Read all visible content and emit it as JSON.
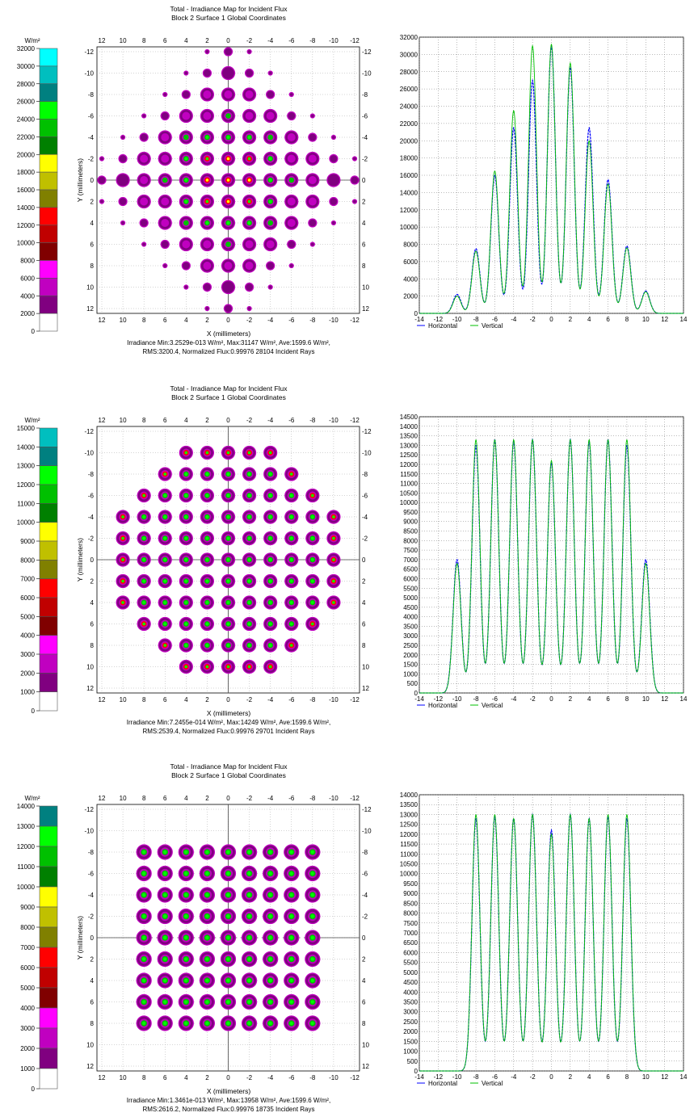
{
  "panels": [
    {
      "title": "Total - Irradiance Map for Incident Flux",
      "subtitle": "Block 2 Surface 1    Global Coordinates",
      "unit": "W/m²",
      "legend_ticks": [
        "32000",
        "30000",
        "28000",
        "26000",
        "24000",
        "22000",
        "20000",
        "18000",
        "16000",
        "14000",
        "12000",
        "10000",
        "8000",
        "6000",
        "4000",
        "2000",
        "0"
      ],
      "map_xlabel": "X (millimeters)",
      "map_ylabel": "Y (millimeters)",
      "stats1": "Irradiance Min:3.2529e-013 W/m², Max:31147 W/m², Ave:1599.6 W/m²,",
      "stats2": "RMS:3200.4, Normalized Flux:0.99976  28104 Incident Rays",
      "legend_h": "Horizontal",
      "legend_v": "Vertical"
    },
    {
      "title": "Total - Irradiance Map for Incident Flux",
      "subtitle": "Block 2 Surface 1    Global Coordinates",
      "unit": "W/m²",
      "legend_ticks": [
        "15000",
        "14000",
        "13000",
        "12000",
        "11000",
        "10000",
        "9000",
        "8000",
        "7000",
        "6000",
        "5000",
        "4000",
        "3000",
        "2000",
        "1000",
        "0"
      ],
      "map_xlabel": "X (millimeters)",
      "map_ylabel": "Y (millimeters)",
      "stats1": "Irradiance Min:7.2455e-014 W/m², Max:14249 W/m², Ave:1599.6 W/m²,",
      "stats2": "RMS:2539.4, Normalized Flux:0.99976  29701 Incident Rays",
      "legend_h": "Horizontal",
      "legend_v": "Vertical"
    },
    {
      "title": "Total - Irradiance Map for Incident Flux",
      "subtitle": "Block 2 Surface 1    Global Coordinates",
      "unit": "W/m²",
      "legend_ticks": [
        "14000",
        "13000",
        "12000",
        "11000",
        "10000",
        "9000",
        "8000",
        "7000",
        "6000",
        "5000",
        "4000",
        "3000",
        "2000",
        "1000",
        "0"
      ],
      "map_xlabel": "X (millimeters)",
      "map_ylabel": "Y (millimeters)",
      "stats1": "Irradiance Min:1.3461e-013 W/m², Max:13958 W/m², Ave:1599.6 W/m²,",
      "stats2": "RMS:2616.2, Normalized Flux:0.99976  18735 Incident Rays",
      "legend_h": "Horizontal",
      "legend_v": "Vertical"
    }
  ],
  "colors": {
    "scale": [
      "#00ffff",
      "#00bfbf",
      "#008080",
      "#00ff00",
      "#00c000",
      "#008000",
      "#ffff00",
      "#c0c000",
      "#808000",
      "#ff0000",
      "#c00000",
      "#800000",
      "#ff00ff",
      "#c000c0",
      "#800080",
      "#ffffff"
    ],
    "horizontal": "#0000ff",
    "vertical": "#00c000"
  },
  "chart_data": [
    {
      "type": "heatmap",
      "layout": "diamond",
      "x_ticks": [
        12,
        10,
        8,
        6,
        4,
        2,
        0,
        -2,
        -4,
        -6,
        -8,
        -10,
        -12
      ],
      "y_ticks": [
        -12,
        -10,
        -8,
        -6,
        -4,
        -2,
        0,
        2,
        4,
        6,
        8,
        10,
        12
      ],
      "spot_pitch": 2,
      "max": 31147
    },
    {
      "type": "line",
      "x_ticks": [
        -14,
        -12,
        -10,
        -8,
        -6,
        -4,
        -2,
        0,
        2,
        4,
        6,
        8,
        10,
        12,
        14
      ],
      "y_ticks": [
        0,
        2000,
        4000,
        6000,
        8000,
        10000,
        12000,
        14000,
        16000,
        18000,
        20000,
        22000,
        24000,
        26000,
        28000,
        30000,
        32000
      ],
      "ylim": [
        0,
        32000
      ],
      "xlim": [
        -14,
        14
      ],
      "series": [
        {
          "name": "Horizontal",
          "peaks_x": [
            -10,
            -8,
            -6,
            -4,
            -2,
            0,
            2,
            4,
            6,
            8,
            10
          ],
          "peaks_y": [
            2200,
            7500,
            16000,
            21500,
            27000,
            31000,
            28500,
            21500,
            15500,
            7800,
            2600
          ]
        },
        {
          "name": "Vertical",
          "peaks_x": [
            -10,
            -8,
            -6,
            -4,
            -2,
            0,
            2,
            4,
            6,
            8,
            10
          ],
          "peaks_y": [
            2000,
            7200,
            16500,
            23500,
            31000,
            31200,
            29000,
            20000,
            15000,
            7600,
            2500
          ]
        }
      ]
    },
    {
      "type": "heatmap",
      "layout": "circle",
      "x_ticks": [
        12,
        10,
        8,
        6,
        4,
        2,
        0,
        -2,
        -4,
        -6,
        -8,
        -10,
        -12
      ],
      "y_ticks": [
        -12,
        -10,
        -8,
        -6,
        -4,
        -2,
        0,
        2,
        4,
        6,
        8,
        10,
        12
      ],
      "spot_pitch": 2,
      "max": 14249
    },
    {
      "type": "line",
      "x_ticks": [
        -14,
        -12,
        -10,
        -8,
        -6,
        -4,
        -2,
        0,
        2,
        4,
        6,
        8,
        10,
        12,
        14
      ],
      "y_ticks": [
        0,
        500,
        1000,
        1500,
        2000,
        2500,
        3000,
        3500,
        4000,
        4500,
        5000,
        5500,
        6000,
        6500,
        7000,
        7500,
        8000,
        8500,
        9000,
        9500,
        10000,
        10500,
        11000,
        11500,
        12000,
        12500,
        13000,
        13500,
        14000,
        14500
      ],
      "ylim": [
        0,
        14500
      ],
      "xlim": [
        -14,
        14
      ],
      "series": [
        {
          "name": "Horizontal",
          "peaks_x": [
            -10,
            -8,
            -6,
            -4,
            -2,
            0,
            2,
            4,
            6,
            8,
            10
          ],
          "peaks_y": [
            7000,
            13000,
            13300,
            13200,
            13300,
            12100,
            13300,
            13200,
            13300,
            13000,
            7000
          ]
        },
        {
          "name": "Vertical",
          "peaks_x": [
            -10,
            -8,
            -6,
            -4,
            -2,
            0,
            2,
            4,
            6,
            8,
            10
          ],
          "peaks_y": [
            6800,
            13300,
            13300,
            13300,
            13300,
            12200,
            13300,
            13300,
            13300,
            13300,
            6800
          ]
        }
      ]
    },
    {
      "type": "heatmap",
      "layout": "square",
      "x_ticks": [
        12,
        10,
        8,
        6,
        4,
        2,
        0,
        -2,
        -4,
        -6,
        -8,
        -10,
        -12
      ],
      "y_ticks": [
        -12,
        -10,
        -8,
        -6,
        -4,
        -2,
        0,
        2,
        4,
        6,
        8,
        10,
        12
      ],
      "spot_pitch": 2,
      "max": 13958
    },
    {
      "type": "line",
      "x_ticks": [
        -14,
        -12,
        -10,
        -8,
        -6,
        -4,
        -2,
        0,
        2,
        4,
        6,
        8,
        10,
        12,
        14
      ],
      "y_ticks": [
        0,
        500,
        1000,
        1500,
        2000,
        2500,
        3000,
        3500,
        4000,
        4500,
        5000,
        5500,
        6000,
        6500,
        7000,
        7500,
        8000,
        8500,
        9000,
        9500,
        10000,
        10500,
        11000,
        11500,
        12000,
        12500,
        13000,
        13500,
        14000
      ],
      "ylim": [
        0,
        14000
      ],
      "xlim": [
        -14,
        14
      ],
      "series": [
        {
          "name": "Horizontal",
          "peaks_x": [
            -8,
            -6,
            -4,
            -2,
            0,
            2,
            4,
            6,
            8
          ],
          "peaks_y": [
            12800,
            12900,
            12800,
            13000,
            12200,
            13000,
            12800,
            12900,
            12800
          ]
        },
        {
          "name": "Vertical",
          "peaks_x": [
            -8,
            -6,
            -4,
            -2,
            0,
            2,
            4,
            6,
            8
          ],
          "peaks_y": [
            13000,
            13000,
            12800,
            13000,
            12000,
            13000,
            12800,
            13000,
            13000
          ]
        }
      ]
    }
  ]
}
